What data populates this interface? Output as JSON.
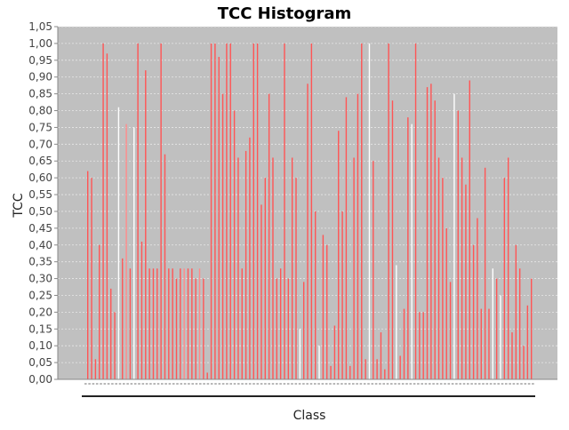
{
  "chart_data": {
    "type": "bar",
    "title": "TCC Histogram",
    "xlabel": "Class",
    "ylabel": "TCC",
    "ylim": [
      0,
      1.05
    ],
    "y_ticks": [
      "0,00",
      "0,05",
      "0,10",
      "0,15",
      "0,20",
      "0,25",
      "0,30",
      "0,35",
      "0,40",
      "0,45",
      "0,50",
      "0,55",
      "0,60",
      "0,65",
      "0,70",
      "0,75",
      "0,80",
      "0,85",
      "0,90",
      "0,95",
      "1,00",
      "1,05"
    ],
    "grid": true,
    "legend": "none",
    "colors": {
      "plot_background": "#c0c0c0",
      "bar": "#ff5555",
      "bar_light": "#ff8a8a",
      "bar_white": "#ffffff",
      "grid": "#e8e8e8"
    },
    "bars": [
      {
        "x": 1,
        "value": 0.62,
        "color": "red"
      },
      {
        "x": 2,
        "value": 0.6,
        "color": "red"
      },
      {
        "x": 3,
        "value": 0.06,
        "color": "red"
      },
      {
        "x": 4,
        "value": 0.4,
        "color": "red"
      },
      {
        "x": 5,
        "value": 1.0,
        "color": "red"
      },
      {
        "x": 6,
        "value": 0.97,
        "color": "red"
      },
      {
        "x": 7,
        "value": 0.27,
        "color": "red"
      },
      {
        "x": 8,
        "value": 0.2,
        "color": "red"
      },
      {
        "x": 9,
        "value": 0.81,
        "color": "white"
      },
      {
        "x": 10,
        "value": 0.36,
        "color": "red"
      },
      {
        "x": 11,
        "value": 0.76,
        "color": "light"
      },
      {
        "x": 12,
        "value": 0.33,
        "color": "red"
      },
      {
        "x": 13,
        "value": 0.75,
        "color": "white"
      },
      {
        "x": 14,
        "value": 1.0,
        "color": "red"
      },
      {
        "x": 15,
        "value": 0.41,
        "color": "red"
      },
      {
        "x": 16,
        "value": 0.92,
        "color": "red"
      },
      {
        "x": 17,
        "value": 0.33,
        "color": "red"
      },
      {
        "x": 18,
        "value": 0.33,
        "color": "red"
      },
      {
        "x": 19,
        "value": 0.33,
        "color": "red"
      },
      {
        "x": 20,
        "value": 1.0,
        "color": "red"
      },
      {
        "x": 21,
        "value": 0.67,
        "color": "red"
      },
      {
        "x": 22,
        "value": 0.33,
        "color": "red"
      },
      {
        "x": 23,
        "value": 0.33,
        "color": "red"
      },
      {
        "x": 24,
        "value": 0.3,
        "color": "red"
      },
      {
        "x": 25,
        "value": 0.33,
        "color": "red"
      },
      {
        "x": 26,
        "value": 0.33,
        "color": "light"
      },
      {
        "x": 27,
        "value": 0.33,
        "color": "red"
      },
      {
        "x": 28,
        "value": 0.33,
        "color": "red"
      },
      {
        "x": 29,
        "value": 0.3,
        "color": "red"
      },
      {
        "x": 30,
        "value": 0.33,
        "color": "light"
      },
      {
        "x": 31,
        "value": 0.3,
        "color": "red"
      },
      {
        "x": 32,
        "value": 0.02,
        "color": "red"
      },
      {
        "x": 33,
        "value": 1.0,
        "color": "red"
      },
      {
        "x": 34,
        "value": 1.0,
        "color": "red"
      },
      {
        "x": 35,
        "value": 0.96,
        "color": "red"
      },
      {
        "x": 36,
        "value": 0.85,
        "color": "red"
      },
      {
        "x": 37,
        "value": 1.0,
        "color": "red"
      },
      {
        "x": 38,
        "value": 1.0,
        "color": "red"
      },
      {
        "x": 39,
        "value": 0.8,
        "color": "red"
      },
      {
        "x": 40,
        "value": 0.66,
        "color": "red"
      },
      {
        "x": 41,
        "value": 0.33,
        "color": "red"
      },
      {
        "x": 42,
        "value": 0.68,
        "color": "red"
      },
      {
        "x": 43,
        "value": 0.72,
        "color": "red"
      },
      {
        "x": 44,
        "value": 1.0,
        "color": "red"
      },
      {
        "x": 45,
        "value": 1.0,
        "color": "red"
      },
      {
        "x": 46,
        "value": 0.52,
        "color": "red"
      },
      {
        "x": 47,
        "value": 0.6,
        "color": "red"
      },
      {
        "x": 48,
        "value": 0.85,
        "color": "red"
      },
      {
        "x": 49,
        "value": 0.66,
        "color": "red"
      },
      {
        "x": 50,
        "value": 0.3,
        "color": "red"
      },
      {
        "x": 51,
        "value": 0.33,
        "color": "red"
      },
      {
        "x": 52,
        "value": 1.0,
        "color": "red"
      },
      {
        "x": 53,
        "value": 0.3,
        "color": "red"
      },
      {
        "x": 54,
        "value": 0.66,
        "color": "red"
      },
      {
        "x": 55,
        "value": 0.6,
        "color": "red"
      },
      {
        "x": 56,
        "value": 0.15,
        "color": "white"
      },
      {
        "x": 57,
        "value": 0.29,
        "color": "red"
      },
      {
        "x": 58,
        "value": 0.88,
        "color": "red"
      },
      {
        "x": 59,
        "value": 1.0,
        "color": "red"
      },
      {
        "x": 60,
        "value": 0.5,
        "color": "red"
      },
      {
        "x": 61,
        "value": 0.1,
        "color": "white"
      },
      {
        "x": 62,
        "value": 0.43,
        "color": "red"
      },
      {
        "x": 63,
        "value": 0.4,
        "color": "red"
      },
      {
        "x": 64,
        "value": 0.04,
        "color": "red"
      },
      {
        "x": 65,
        "value": 0.16,
        "color": "red"
      },
      {
        "x": 66,
        "value": 0.74,
        "color": "red"
      },
      {
        "x": 67,
        "value": 0.5,
        "color": "red"
      },
      {
        "x": 68,
        "value": 0.84,
        "color": "red"
      },
      {
        "x": 69,
        "value": 0.04,
        "color": "red"
      },
      {
        "x": 70,
        "value": 0.66,
        "color": "red"
      },
      {
        "x": 71,
        "value": 0.85,
        "color": "red"
      },
      {
        "x": 72,
        "value": 1.0,
        "color": "red"
      },
      {
        "x": 73,
        "value": 0.06,
        "color": "red"
      },
      {
        "x": 74,
        "value": 1.0,
        "color": "white"
      },
      {
        "x": 75,
        "value": 0.65,
        "color": "red"
      },
      {
        "x": 76,
        "value": 0.06,
        "color": "red"
      },
      {
        "x": 77,
        "value": 0.14,
        "color": "red"
      },
      {
        "x": 78,
        "value": 0.03,
        "color": "red"
      },
      {
        "x": 79,
        "value": 1.0,
        "color": "red"
      },
      {
        "x": 80,
        "value": 0.83,
        "color": "red"
      },
      {
        "x": 81,
        "value": 0.34,
        "color": "white"
      },
      {
        "x": 82,
        "value": 0.07,
        "color": "red"
      },
      {
        "x": 83,
        "value": 0.21,
        "color": "red"
      },
      {
        "x": 84,
        "value": 0.78,
        "color": "red"
      },
      {
        "x": 85,
        "value": 0.76,
        "color": "white"
      },
      {
        "x": 86,
        "value": 1.0,
        "color": "red"
      },
      {
        "x": 87,
        "value": 0.2,
        "color": "red"
      },
      {
        "x": 88,
        "value": 0.2,
        "color": "red"
      },
      {
        "x": 89,
        "value": 0.87,
        "color": "red"
      },
      {
        "x": 90,
        "value": 0.88,
        "color": "red"
      },
      {
        "x": 91,
        "value": 0.83,
        "color": "red"
      },
      {
        "x": 92,
        "value": 0.66,
        "color": "red"
      },
      {
        "x": 93,
        "value": 0.6,
        "color": "red"
      },
      {
        "x": 94,
        "value": 0.45,
        "color": "red"
      },
      {
        "x": 95,
        "value": 0.29,
        "color": "red"
      },
      {
        "x": 96,
        "value": 0.85,
        "color": "white"
      },
      {
        "x": 97,
        "value": 0.8,
        "color": "red"
      },
      {
        "x": 98,
        "value": 0.66,
        "color": "red"
      },
      {
        "x": 99,
        "value": 0.58,
        "color": "red"
      },
      {
        "x": 100,
        "value": 0.89,
        "color": "red"
      },
      {
        "x": 101,
        "value": 0.4,
        "color": "red"
      },
      {
        "x": 102,
        "value": 0.48,
        "color": "red"
      },
      {
        "x": 103,
        "value": 0.21,
        "color": "red"
      },
      {
        "x": 104,
        "value": 0.63,
        "color": "red"
      },
      {
        "x": 105,
        "value": 0.21,
        "color": "red"
      },
      {
        "x": 106,
        "value": 0.33,
        "color": "white"
      },
      {
        "x": 107,
        "value": 0.3,
        "color": "red"
      },
      {
        "x": 108,
        "value": 0.25,
        "color": "white"
      },
      {
        "x": 109,
        "value": 0.6,
        "color": "red"
      },
      {
        "x": 110,
        "value": 0.66,
        "color": "red"
      },
      {
        "x": 111,
        "value": 0.14,
        "color": "red"
      },
      {
        "x": 112,
        "value": 0.4,
        "color": "red"
      },
      {
        "x": 113,
        "value": 0.33,
        "color": "red"
      },
      {
        "x": 114,
        "value": 0.1,
        "color": "red"
      },
      {
        "x": 115,
        "value": 0.22,
        "color": "red"
      },
      {
        "x": 116,
        "value": 0.3,
        "color": "red"
      }
    ]
  }
}
